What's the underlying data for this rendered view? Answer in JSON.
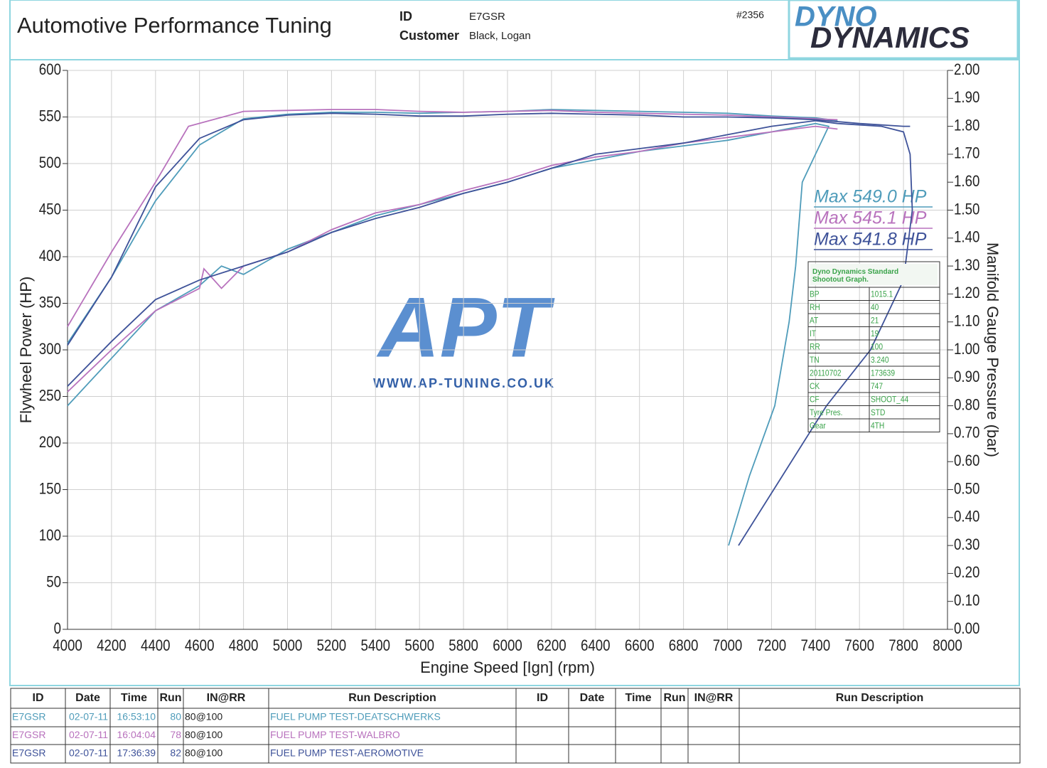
{
  "header": {
    "title": "Automotive Performance Tuning",
    "id_label": "ID",
    "id_value": "E7GSR",
    "customer_label": "Customer",
    "customer_value": "Black, Logan",
    "sheet_number": "#2356",
    "logo_top": "DYNO",
    "logo_bottom": "DYNAMICS"
  },
  "watermark": {
    "text": "APT",
    "url": "WWW.AP-TUNING.CO.UK"
  },
  "chart_data": {
    "type": "line",
    "x_label": "Engine Speed [Ign] (rpm)",
    "y_label": "Flywheel Power (HP)",
    "y2_label": "Manifold Gauge Pressure (bar)",
    "xlim": [
      4000,
      8000
    ],
    "xticks": [
      4000,
      4200,
      4400,
      4600,
      4800,
      5000,
      5200,
      5400,
      5600,
      5800,
      6000,
      6200,
      6400,
      6600,
      6800,
      7000,
      7200,
      7400,
      7600,
      7800,
      8000
    ],
    "ylim": [
      0,
      600
    ],
    "yticks": [
      0,
      50,
      100,
      150,
      200,
      250,
      300,
      350,
      400,
      450,
      500,
      550,
      600
    ],
    "y2lim": [
      0,
      2
    ],
    "y2ticks": [
      {
        "value": 0,
        "label": "0.00"
      },
      {
        "value": 0.1,
        "label": "0.10"
      },
      {
        "value": 0.2,
        "label": "0.20"
      },
      {
        "value": 0.3,
        "label": "0.30"
      },
      {
        "value": 0.4,
        "label": "0.40"
      },
      {
        "value": 0.5,
        "label": "0.50"
      },
      {
        "value": 0.6,
        "label": "0.60"
      },
      {
        "value": 0.7,
        "label": "0.70"
      },
      {
        "value": 0.8,
        "label": "0.80"
      },
      {
        "value": 0.9,
        "label": "0.90"
      },
      {
        "value": 1,
        "label": "1.00"
      },
      {
        "value": 1.1,
        "label": "1.10"
      },
      {
        "value": 1.2,
        "label": "1.20"
      },
      {
        "value": 1.3,
        "label": "1.30"
      },
      {
        "value": 1.4,
        "label": "1.40"
      },
      {
        "value": 1.5,
        "label": "1.50"
      },
      {
        "value": 1.6,
        "label": "1.60"
      },
      {
        "value": 1.7,
        "label": "1.70"
      },
      {
        "value": 1.8,
        "label": "1.80"
      },
      {
        "value": 1.9,
        "label": "1.90"
      },
      {
        "value": 2,
        "label": "2.00"
      }
    ],
    "grid": true,
    "series": [
      {
        "name": "Max 549.0 HP",
        "color": "#4f9cba",
        "x": [
          4000,
          4200,
          4400,
          4600,
          4800,
          5000,
          5200,
          5400,
          5600,
          5800,
          6000,
          6200,
          6400,
          6600,
          6800,
          7000,
          7200,
          7400,
          7500
        ],
        "values": [
          307,
          378,
          460,
          520,
          548,
          553,
          555,
          555,
          554,
          555,
          556,
          558,
          557,
          556,
          555,
          554,
          551,
          549,
          546
        ]
      },
      {
        "name": "Max 545.1 HP",
        "color": "#b872bd",
        "x": [
          4000,
          4200,
          4400,
          4550,
          4800,
          5000,
          5200,
          5400,
          5600,
          5800,
          6000,
          6200,
          6400,
          6600,
          6800,
          7000,
          7200,
          7400,
          7500
        ],
        "values": [
          325,
          405,
          480,
          540,
          556,
          557,
          558,
          558,
          556,
          555,
          556,
          557,
          555,
          554,
          553,
          552,
          550,
          548,
          547
        ]
      },
      {
        "name": "Max 541.8 HP",
        "color": "#3e5299",
        "x": [
          4000,
          4200,
          4400,
          4600,
          4800,
          5000,
          5200,
          5400,
          5600,
          5800,
          6000,
          6200,
          6400,
          6600,
          6800,
          7000,
          7200,
          7400,
          7600,
          7800,
          7830
        ],
        "values": [
          305,
          378,
          475,
          527,
          547,
          552,
          554,
          553,
          551,
          551,
          553,
          554,
          553,
          552,
          550,
          550,
          549,
          547,
          543,
          540,
          540
        ]
      },
      {
        "axis": "y2",
        "color": "#4f9cba",
        "x": [
          4000,
          4200,
          4400,
          4600,
          4700,
          4800,
          5000,
          5200,
          5400,
          5600,
          5800,
          6000,
          6200,
          6400,
          6600,
          6800,
          7000,
          7200,
          7400,
          7460,
          7400,
          7340,
          7310,
          7280,
          7215,
          7100,
          7005
        ],
        "values": [
          0.8,
          0.97,
          1.14,
          1.23,
          1.3,
          1.27,
          1.36,
          1.42,
          1.48,
          1.52,
          1.56,
          1.6,
          1.65,
          1.68,
          1.71,
          1.73,
          1.75,
          1.78,
          1.81,
          1.8,
          1.7,
          1.6,
          1.3,
          1.1,
          0.8,
          0.55,
          0.3
        ]
      },
      {
        "axis": "y2",
        "color": "#b872bd",
        "x": [
          4000,
          4200,
          4400,
          4600,
          4620,
          4700,
          4800,
          5000,
          5200,
          5400,
          5600,
          5800,
          6000,
          6200,
          6400,
          6600,
          6800,
          7000,
          7200,
          7400,
          7500
        ],
        "values": [
          0.85,
          1.0,
          1.14,
          1.22,
          1.29,
          1.22,
          1.3,
          1.35,
          1.43,
          1.49,
          1.52,
          1.57,
          1.61,
          1.66,
          1.69,
          1.71,
          1.74,
          1.76,
          1.78,
          1.8,
          1.79
        ]
      },
      {
        "axis": "y2",
        "color": "#3e5299",
        "x": [
          4000,
          4200,
          4400,
          4600,
          4800,
          5000,
          5200,
          5400,
          5600,
          5800,
          6000,
          6200,
          6400,
          6600,
          6800,
          7000,
          7200,
          7400,
          7500,
          7700,
          7800,
          7830,
          7840,
          7800,
          7650,
          7450,
          7250,
          7050
        ],
        "values": [
          0.87,
          1.03,
          1.18,
          1.25,
          1.3,
          1.35,
          1.42,
          1.47,
          1.51,
          1.56,
          1.6,
          1.65,
          1.7,
          1.72,
          1.74,
          1.77,
          1.8,
          1.82,
          1.81,
          1.8,
          1.78,
          1.7,
          1.5,
          1.25,
          1.0,
          0.8,
          0.55,
          0.3
        ]
      }
    ]
  },
  "info_box": {
    "title": "Dyno Dynamics Standard Shootout Graph.",
    "rows": [
      [
        "BP",
        "1015.1"
      ],
      [
        "RH",
        "40"
      ],
      [
        "AT",
        "21"
      ],
      [
        "IT",
        "19"
      ],
      [
        "RR",
        "100"
      ],
      [
        "TN",
        "3.240"
      ],
      [
        "20110702",
        "173639"
      ],
      [
        "CK",
        "747"
      ],
      [
        "CF",
        "SHOOT_44"
      ],
      [
        "Tyre Pres.",
        "STD"
      ],
      [
        "Gear",
        "4TH"
      ]
    ]
  },
  "run_table": {
    "headers": [
      "ID",
      "Date",
      "Time",
      "Run",
      "IN@RR",
      "Run Description",
      "ID",
      "Date",
      "Time",
      "Run",
      "IN@RR",
      "Run Description"
    ],
    "rows": [
      [
        "E7GSR",
        "02-07-11",
        "16:53:10",
        "80",
        "80@100",
        "FUEL PUMP TEST-DEATSCHWERKS"
      ],
      [
        "E7GSR",
        "02-07-11",
        "16:04:04",
        "78",
        "80@100",
        "FUEL PUMP TEST-WALBRO"
      ],
      [
        "E7GSR",
        "02-07-11",
        "17:36:39",
        "82",
        "80@100",
        "FUEL PUMP TEST-AEROMOTIVE"
      ]
    ]
  }
}
